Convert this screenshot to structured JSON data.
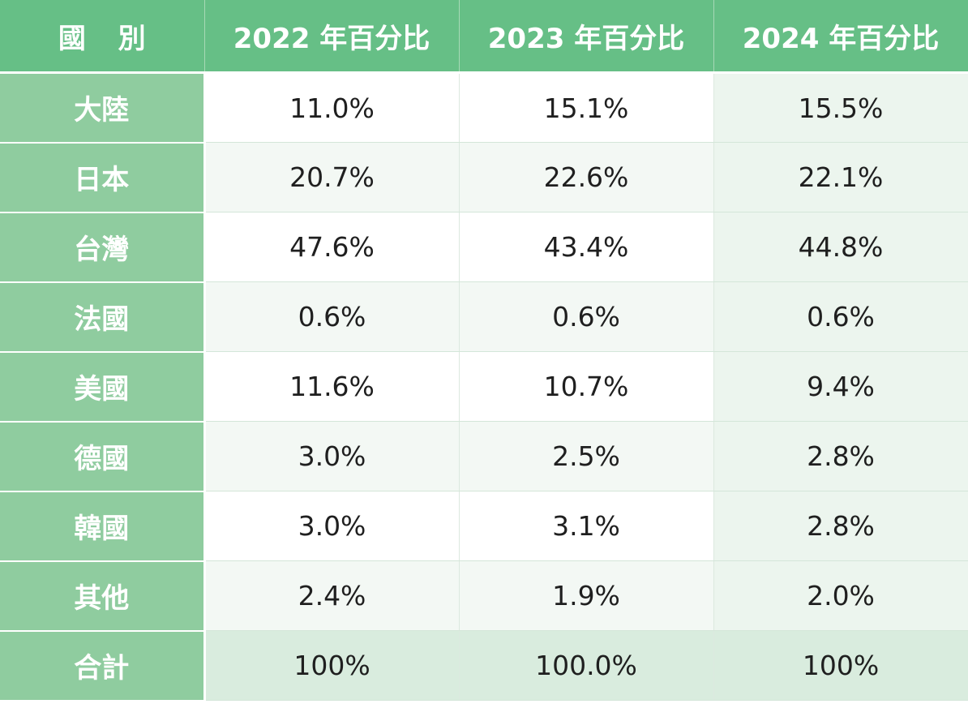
{
  "chart_data": {
    "type": "table",
    "columns": [
      "國 別",
      "2022 年百分比",
      "2023 年百分比",
      "2024 年百分比"
    ],
    "rows": [
      {
        "country": "大陸",
        "values": [
          "11.0%",
          "15.1%",
          "15.5%"
        ]
      },
      {
        "country": "日本",
        "values": [
          "20.7%",
          "22.6%",
          "22.1%"
        ]
      },
      {
        "country": "台灣",
        "values": [
          "47.6%",
          "43.4%",
          "44.8%"
        ]
      },
      {
        "country": "法國",
        "values": [
          "0.6%",
          "0.6%",
          "0.6%"
        ]
      },
      {
        "country": "美國",
        "values": [
          "11.6%",
          "10.7%",
          "9.4%"
        ]
      },
      {
        "country": "德國",
        "values": [
          "3.0%",
          "2.5%",
          "2.8%"
        ]
      },
      {
        "country": "韓國",
        "values": [
          "3.0%",
          "3.1%",
          "2.8%"
        ]
      },
      {
        "country": "其他",
        "values": [
          "2.4%",
          "1.9%",
          "2.0%"
        ]
      },
      {
        "country": "合計",
        "values": [
          "100%",
          "100.0%",
          "100%"
        ]
      }
    ],
    "colors": {
      "header_bg": "#66bf86",
      "name_col_bg": "#8fcc9f",
      "row_alt_bg": "#f3f8f4",
      "total_row_bg": "#d9ecde"
    }
  }
}
